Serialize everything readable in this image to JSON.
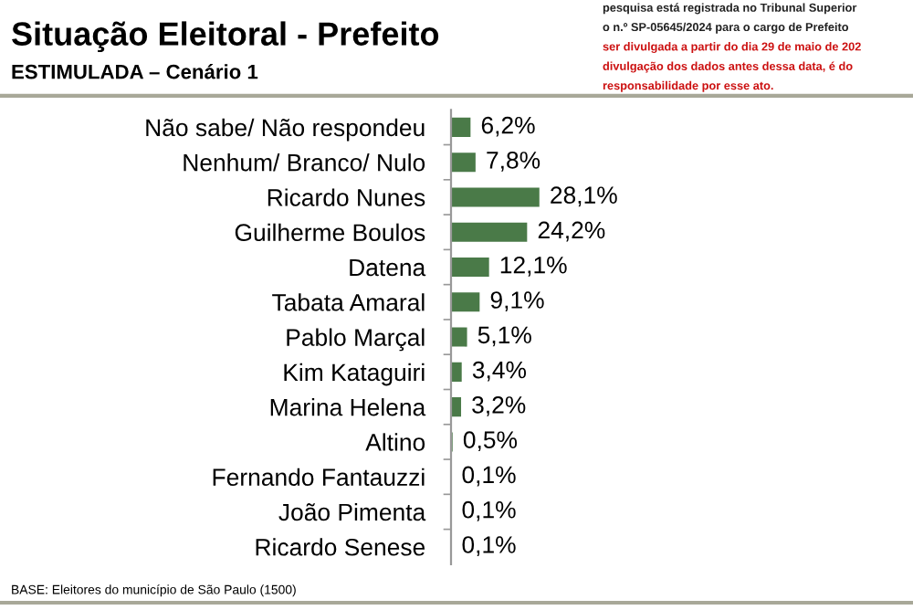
{
  "chart_data": {
    "type": "bar",
    "orientation": "horizontal",
    "title": "Situação Eleitoral - Prefeito",
    "subtitle": "ESTIMULADA – Cenário 1",
    "categories": [
      "Não sabe/ Não respondeu",
      "Nenhum/ Branco/ Nulo",
      "Ricardo Nunes",
      "Guilherme Boulos",
      "Datena",
      "Tabata Amaral",
      "Pablo Marçal",
      "Kim Kataguiri",
      "Marina Helena",
      "Altino",
      "Fernando Fantauzzi",
      "João Pimenta",
      "Ricardo Senese"
    ],
    "values": [
      6.2,
      7.8,
      28.1,
      24.2,
      12.1,
      9.1,
      5.1,
      3.4,
      3.2,
      0.5,
      0.1,
      0.1,
      0.1
    ],
    "value_labels": [
      "6,2%",
      "7,8%",
      "28,1%",
      "24,2%",
      "12,1%",
      "9,1%",
      "5,1%",
      "3,4%",
      "3,2%",
      "0,5%",
      "0,1%",
      "0,1%",
      "0,1%"
    ],
    "color": "#4a7a48",
    "tick_labels": "y",
    "annotations": [
      "pesquisa está registrada no Tribunal Superior",
      "o n.º SP-05645/2024 para o cargo de Prefeito",
      "ser divulgada a partir do dia 29 de maio de 202",
      "divulgação dos dados antes dessa data, é do",
      "responsabilidade por esse ato.",
      "BASE: Eleitores do município de São Paulo (1500)"
    ]
  }
}
